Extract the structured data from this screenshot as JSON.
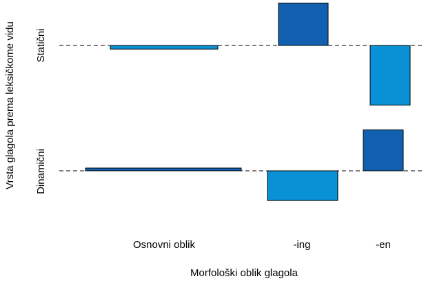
{
  "chart_data": {
    "type": "bar",
    "subtype": "association-plot",
    "xlabel": "Morfološki oblik glagola",
    "ylabel": "Vrsta glagola prema leksičkome vidu",
    "x_categories": [
      "Osnovni oblik",
      "-ing",
      "-en"
    ],
    "x_category_shares": [
      0.5,
      0.23,
      0.13
    ],
    "y_categories": [
      "Statični",
      "Dinamični"
    ],
    "residual_scale": "Pearson residual (unitless)",
    "series": [
      {
        "row": "Statični",
        "values": [
          -0.12,
          1.4,
          -1.97
        ]
      },
      {
        "row": "Dinamični",
        "values": [
          0.08,
          -0.98,
          1.35
        ]
      }
    ],
    "colors": {
      "positive": "#1261B0",
      "negative": "#0A90D5",
      "outline": "#000000",
      "baseline": "#000000"
    },
    "grid": false,
    "legend": "none"
  }
}
